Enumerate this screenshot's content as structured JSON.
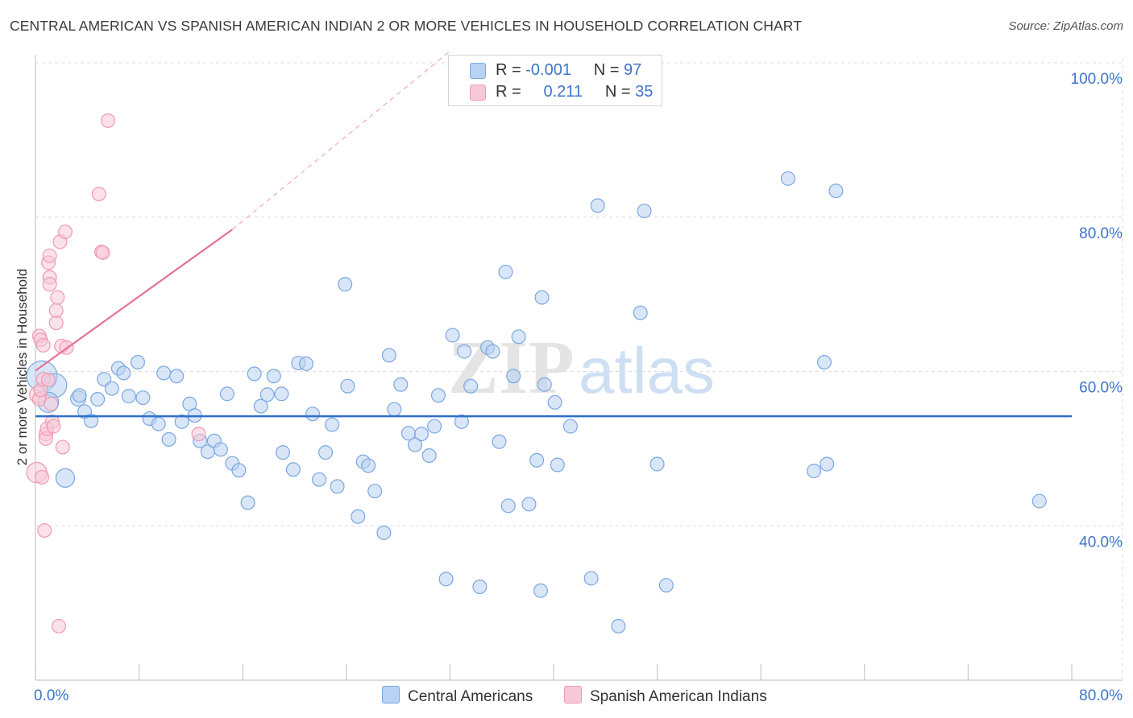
{
  "title": "CENTRAL AMERICAN VS SPANISH AMERICAN INDIAN 2 OR MORE VEHICLES IN HOUSEHOLD CORRELATION CHART",
  "source": "Source: ZipAtlas.com",
  "watermark": {
    "zip": "ZIP",
    "atlas": "atlas"
  },
  "legend": {
    "rows": [
      {
        "r_label": "R =",
        "r_value": "-0.001",
        "n_label": "N =",
        "n_value": "97"
      },
      {
        "r_label": "R =",
        "r_value": "0.211",
        "n_label": "N =",
        "n_value": "35"
      }
    ]
  },
  "chart_data": {
    "type": "scatter",
    "ylabel": "2 or more Vehicles in Household",
    "xlim": [
      0,
      80
    ],
    "ylim": [
      20,
      100
    ],
    "x_tick_labels": [
      "0.0%",
      "80.0%"
    ],
    "y_tick_labels": [
      {
        "value": 100,
        "label": "100.0%"
      },
      {
        "value": 80,
        "label": "80.0%"
      },
      {
        "value": 60,
        "label": "60.0%"
      },
      {
        "value": 40,
        "label": "40.0%"
      }
    ],
    "grid": true,
    "legend_position": "bottom-center",
    "series": [
      {
        "name": "Central Americans",
        "color": "#7aa7e0",
        "fill": "#b9d1f2",
        "trend": {
          "x0": 0,
          "y0": 54.2,
          "x1": 80,
          "y1": 54.2,
          "color": "#2f6fca"
        },
        "points": [
          [
            0.5,
            59.4,
            1.8
          ],
          [
            1.5,
            58.2,
            1.4
          ],
          [
            1.0,
            56.0,
            1.2
          ],
          [
            2.3,
            46.2,
            1.1
          ],
          [
            3.3,
            56.5,
            0.9
          ],
          [
            3.4,
            56.9,
            0.8
          ],
          [
            3.8,
            54.8,
            0.8
          ],
          [
            4.3,
            53.6,
            0.8
          ],
          [
            4.8,
            56.4,
            0.8
          ],
          [
            5.3,
            59.0,
            0.8
          ],
          [
            5.9,
            57.8,
            0.8
          ],
          [
            6.4,
            60.4,
            0.8
          ],
          [
            6.8,
            59.8,
            0.8
          ],
          [
            7.2,
            56.8,
            0.8
          ],
          [
            7.9,
            61.2,
            0.8
          ],
          [
            8.3,
            56.6,
            0.8
          ],
          [
            8.8,
            53.9,
            0.8
          ],
          [
            9.5,
            53.2,
            0.8
          ],
          [
            9.9,
            59.8,
            0.8
          ],
          [
            10.3,
            51.2,
            0.8
          ],
          [
            10.9,
            59.4,
            0.8
          ],
          [
            11.3,
            53.5,
            0.8
          ],
          [
            11.9,
            55.8,
            0.8
          ],
          [
            12.3,
            54.3,
            0.8
          ],
          [
            12.7,
            51.0,
            0.8
          ],
          [
            13.3,
            49.6,
            0.8
          ],
          [
            13.8,
            51.0,
            0.8
          ],
          [
            14.3,
            49.9,
            0.8
          ],
          [
            14.8,
            57.1,
            0.8
          ],
          [
            15.2,
            48.1,
            0.8
          ],
          [
            15.7,
            47.2,
            0.8
          ],
          [
            16.4,
            43.0,
            0.8
          ],
          [
            16.9,
            59.7,
            0.8
          ],
          [
            17.4,
            55.5,
            0.8
          ],
          [
            17.9,
            57.0,
            0.8
          ],
          [
            18.4,
            59.4,
            0.8
          ],
          [
            19.0,
            57.1,
            0.8
          ],
          [
            19.1,
            49.5,
            0.8
          ],
          [
            19.9,
            47.3,
            0.8
          ],
          [
            20.3,
            61.1,
            0.8
          ],
          [
            20.9,
            61.0,
            0.8
          ],
          [
            21.4,
            54.5,
            0.8
          ],
          [
            21.9,
            46.0,
            0.8
          ],
          [
            22.4,
            49.5,
            0.8
          ],
          [
            22.9,
            53.1,
            0.8
          ],
          [
            23.3,
            45.1,
            0.8
          ],
          [
            23.9,
            71.3,
            0.8
          ],
          [
            24.1,
            58.1,
            0.8
          ],
          [
            24.9,
            41.2,
            0.8
          ],
          [
            25.3,
            48.3,
            0.8
          ],
          [
            25.7,
            47.8,
            0.8
          ],
          [
            26.2,
            44.5,
            0.8
          ],
          [
            26.9,
            39.1,
            0.8
          ],
          [
            27.3,
            62.1,
            0.8
          ],
          [
            27.7,
            55.1,
            0.8
          ],
          [
            28.2,
            58.3,
            0.8
          ],
          [
            28.8,
            52.0,
            0.8
          ],
          [
            29.3,
            50.5,
            0.8
          ],
          [
            29.8,
            51.9,
            0.8
          ],
          [
            30.4,
            49.1,
            0.8
          ],
          [
            30.8,
            52.9,
            0.8
          ],
          [
            31.1,
            56.9,
            0.8
          ],
          [
            31.7,
            33.1,
            0.8
          ],
          [
            32.2,
            64.7,
            0.8
          ],
          [
            32.9,
            53.5,
            0.8
          ],
          [
            33.1,
            62.6,
            0.8
          ],
          [
            33.6,
            58.1,
            0.8
          ],
          [
            34.3,
            32.1,
            0.8
          ],
          [
            34.9,
            63.1,
            0.8
          ],
          [
            35.3,
            62.6,
            0.8
          ],
          [
            35.8,
            50.9,
            0.8
          ],
          [
            36.3,
            72.9,
            0.8
          ],
          [
            36.5,
            42.6,
            0.8
          ],
          [
            36.9,
            59.4,
            0.8
          ],
          [
            37.3,
            64.5,
            0.8
          ],
          [
            38.1,
            42.8,
            0.8
          ],
          [
            38.7,
            48.5,
            0.8
          ],
          [
            39.0,
            31.6,
            0.8
          ],
          [
            39.3,
            58.3,
            0.8
          ],
          [
            39.1,
            69.6,
            0.8
          ],
          [
            40.1,
            56.0,
            0.8
          ],
          [
            40.3,
            47.9,
            0.8
          ],
          [
            41.3,
            52.9,
            0.8
          ],
          [
            42.9,
            33.2,
            0.8
          ],
          [
            43.4,
            81.5,
            0.8
          ],
          [
            45.0,
            27.0,
            0.8
          ],
          [
            46.7,
            67.6,
            0.8
          ],
          [
            47.0,
            80.8,
            0.8
          ],
          [
            48.0,
            48.0,
            0.8
          ],
          [
            48.7,
            32.3,
            0.8
          ],
          [
            58.1,
            85.0,
            0.8
          ],
          [
            60.1,
            47.1,
            0.8
          ],
          [
            60.9,
            61.2,
            0.8
          ],
          [
            61.1,
            48.0,
            0.8
          ],
          [
            61.8,
            83.4,
            0.8
          ],
          [
            77.5,
            43.2,
            0.8
          ]
        ]
      },
      {
        "name": "Spanish American Indians",
        "color": "#ee9ab4",
        "fill": "#f7c9d7",
        "trend": {
          "x0": 0,
          "y0": 60.1,
          "x1": 15.2,
          "y1": 78.4,
          "x1_dashed": 32.0,
          "y1_dashed": 101.5,
          "color": "#e3719a"
        },
        "points": [
          [
            0.1,
            46.9,
            1.2
          ],
          [
            0.2,
            57.0,
            1.0
          ],
          [
            0.3,
            64.6,
            0.8
          ],
          [
            0.3,
            56.4,
            0.8
          ],
          [
            0.4,
            64.1,
            0.8
          ],
          [
            0.4,
            57.6,
            0.8
          ],
          [
            0.5,
            46.3,
            0.8
          ],
          [
            0.6,
            63.4,
            0.8
          ],
          [
            0.6,
            59.0,
            0.8
          ],
          [
            0.7,
            39.4,
            0.8
          ],
          [
            0.8,
            51.9,
            0.8
          ],
          [
            0.8,
            51.3,
            0.8
          ],
          [
            0.9,
            52.6,
            0.8
          ],
          [
            1.0,
            74.1,
            0.8
          ],
          [
            1.0,
            58.9,
            0.8
          ],
          [
            1.1,
            72.2,
            0.8
          ],
          [
            1.1,
            75.0,
            0.8
          ],
          [
            1.1,
            71.3,
            0.8
          ],
          [
            1.2,
            55.8,
            0.8
          ],
          [
            1.3,
            53.5,
            0.8
          ],
          [
            1.4,
            52.9,
            0.8
          ],
          [
            1.6,
            66.3,
            0.8
          ],
          [
            1.6,
            67.9,
            0.8
          ],
          [
            1.7,
            69.6,
            0.8
          ],
          [
            1.8,
            27.0,
            0.8
          ],
          [
            1.9,
            76.8,
            0.8
          ],
          [
            2.0,
            63.3,
            0.8
          ],
          [
            2.1,
            50.2,
            0.8
          ],
          [
            2.3,
            78.1,
            0.8
          ],
          [
            2.4,
            63.1,
            0.8
          ],
          [
            4.9,
            83.0,
            0.8
          ],
          [
            5.1,
            75.5,
            0.8
          ],
          [
            5.2,
            75.4,
            0.8
          ],
          [
            5.6,
            92.5,
            0.8
          ],
          [
            12.6,
            51.9,
            0.8
          ]
        ]
      }
    ]
  }
}
